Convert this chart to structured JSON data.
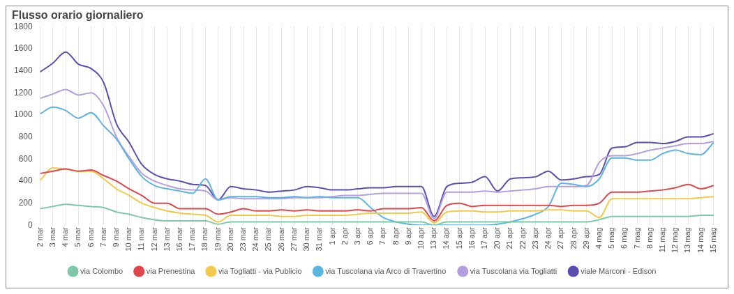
{
  "chart_data": {
    "type": "line",
    "title": "Flusso orario giornaliero",
    "categories": [
      "2 mar",
      "3 mar",
      "4 mar",
      "5 mar",
      "6 mar",
      "7 mar",
      "9 mar",
      "10 mar",
      "11 mar",
      "12 mar",
      "13 mar",
      "16 mar",
      "17 mar",
      "18 mar",
      "19 mar",
      "20 mar",
      "23 mar",
      "24 mar",
      "25 mar",
      "26 mar",
      "27 mar",
      "30 mar",
      "31 mar",
      "1 apr",
      "2 apr",
      "3 apr",
      "6 apr",
      "7 apr",
      "8 apr",
      "9 apr",
      "10 apr",
      "13 apr",
      "14 apr",
      "15 apr",
      "16 apr",
      "17 apr",
      "20 apr",
      "21 apr",
      "22 apr",
      "23 apr",
      "24 apr",
      "27 apr",
      "28 apr",
      "29 apr",
      "4 mag",
      "5 mag",
      "6 mag",
      "7 mag",
      "8 mag",
      "11 mag",
      "12 mag",
      "13 mag",
      "14 mag",
      "15 mag"
    ],
    "series": [
      {
        "name": "via Colombo",
        "color": "#7ec8a9",
        "values": [
          150,
          170,
          190,
          180,
          170,
          160,
          120,
          100,
          70,
          50,
          40,
          40,
          40,
          40,
          10,
          30,
          30,
          30,
          30,
          30,
          30,
          30,
          30,
          30,
          30,
          30,
          30,
          30,
          30,
          30,
          30,
          0,
          30,
          30,
          30,
          30,
          30,
          30,
          30,
          30,
          30,
          30,
          30,
          30,
          50,
          80,
          80,
          80,
          80,
          80,
          80,
          80,
          90,
          90
        ]
      },
      {
        "name": "via Prenestina",
        "color": "#e0474c",
        "values": [
          470,
          490,
          510,
          490,
          500,
          450,
          400,
          330,
          270,
          200,
          200,
          150,
          150,
          150,
          100,
          120,
          150,
          130,
          130,
          140,
          130,
          140,
          130,
          130,
          130,
          140,
          130,
          150,
          150,
          150,
          160,
          40,
          180,
          200,
          170,
          180,
          180,
          180,
          180,
          180,
          180,
          170,
          180,
          180,
          200,
          300,
          300,
          300,
          310,
          320,
          340,
          370,
          330,
          360
        ]
      },
      {
        "name": "via Togliatti - via Publicio",
        "color": "#f2c94c",
        "values": [
          410,
          520,
          510,
          490,
          490,
          420,
          330,
          270,
          200,
          160,
          130,
          110,
          100,
          90,
          30,
          90,
          90,
          90,
          90,
          80,
          80,
          90,
          90,
          90,
          90,
          100,
          110,
          110,
          110,
          110,
          120,
          20,
          120,
          130,
          130,
          120,
          120,
          130,
          130,
          130,
          140,
          140,
          130,
          130,
          70,
          240,
          240,
          240,
          240,
          240,
          240,
          240,
          250,
          260
        ]
      },
      {
        "name": "via Tuscolana via Arco di Travertino",
        "color": "#5bb5e0",
        "values": [
          1010,
          1070,
          1040,
          970,
          1020,
          900,
          780,
          600,
          440,
          360,
          330,
          310,
          290,
          420,
          230,
          260,
          260,
          260,
          250,
          250,
          260,
          250,
          260,
          250,
          250,
          250,
          160,
          70,
          30,
          10,
          0,
          0,
          0,
          0,
          0,
          0,
          10,
          30,
          60,
          100,
          170,
          380,
          370,
          350,
          420,
          610,
          610,
          590,
          590,
          650,
          680,
          650,
          640,
          750
        ]
      },
      {
        "name": "via Tuscolana via Togliatti",
        "color": "#b59ee0",
        "values": [
          1150,
          1190,
          1230,
          1180,
          1200,
          1080,
          800,
          620,
          470,
          400,
          360,
          330,
          320,
          310,
          230,
          250,
          240,
          240,
          240,
          240,
          250,
          250,
          250,
          260,
          270,
          270,
          280,
          290,
          290,
          290,
          290,
          60,
          300,
          300,
          300,
          310,
          300,
          310,
          320,
          330,
          350,
          350,
          350,
          360,
          570,
          630,
          630,
          650,
          680,
          700,
          720,
          740,
          740,
          760
        ]
      },
      {
        "name": "viale Marconi - Edison",
        "color": "#5a4fb0",
        "values": [
          1390,
          1470,
          1570,
          1460,
          1420,
          1290,
          920,
          750,
          550,
          460,
          420,
          400,
          370,
          360,
          230,
          350,
          330,
          320,
          300,
          310,
          320,
          350,
          340,
          320,
          320,
          330,
          340,
          340,
          350,
          350,
          350,
          80,
          350,
          380,
          390,
          440,
          310,
          420,
          430,
          440,
          490,
          410,
          420,
          440,
          460,
          700,
          710,
          750,
          750,
          740,
          760,
          800,
          800,
          830
        ]
      }
    ],
    "ylim": [
      0,
      1800
    ],
    "yticks": [
      0,
      200,
      400,
      600,
      800,
      1000,
      1200,
      1400,
      1600,
      1800
    ],
    "grid": "x",
    "legend": "bottom",
    "marker": "none",
    "line_style": "solid"
  }
}
